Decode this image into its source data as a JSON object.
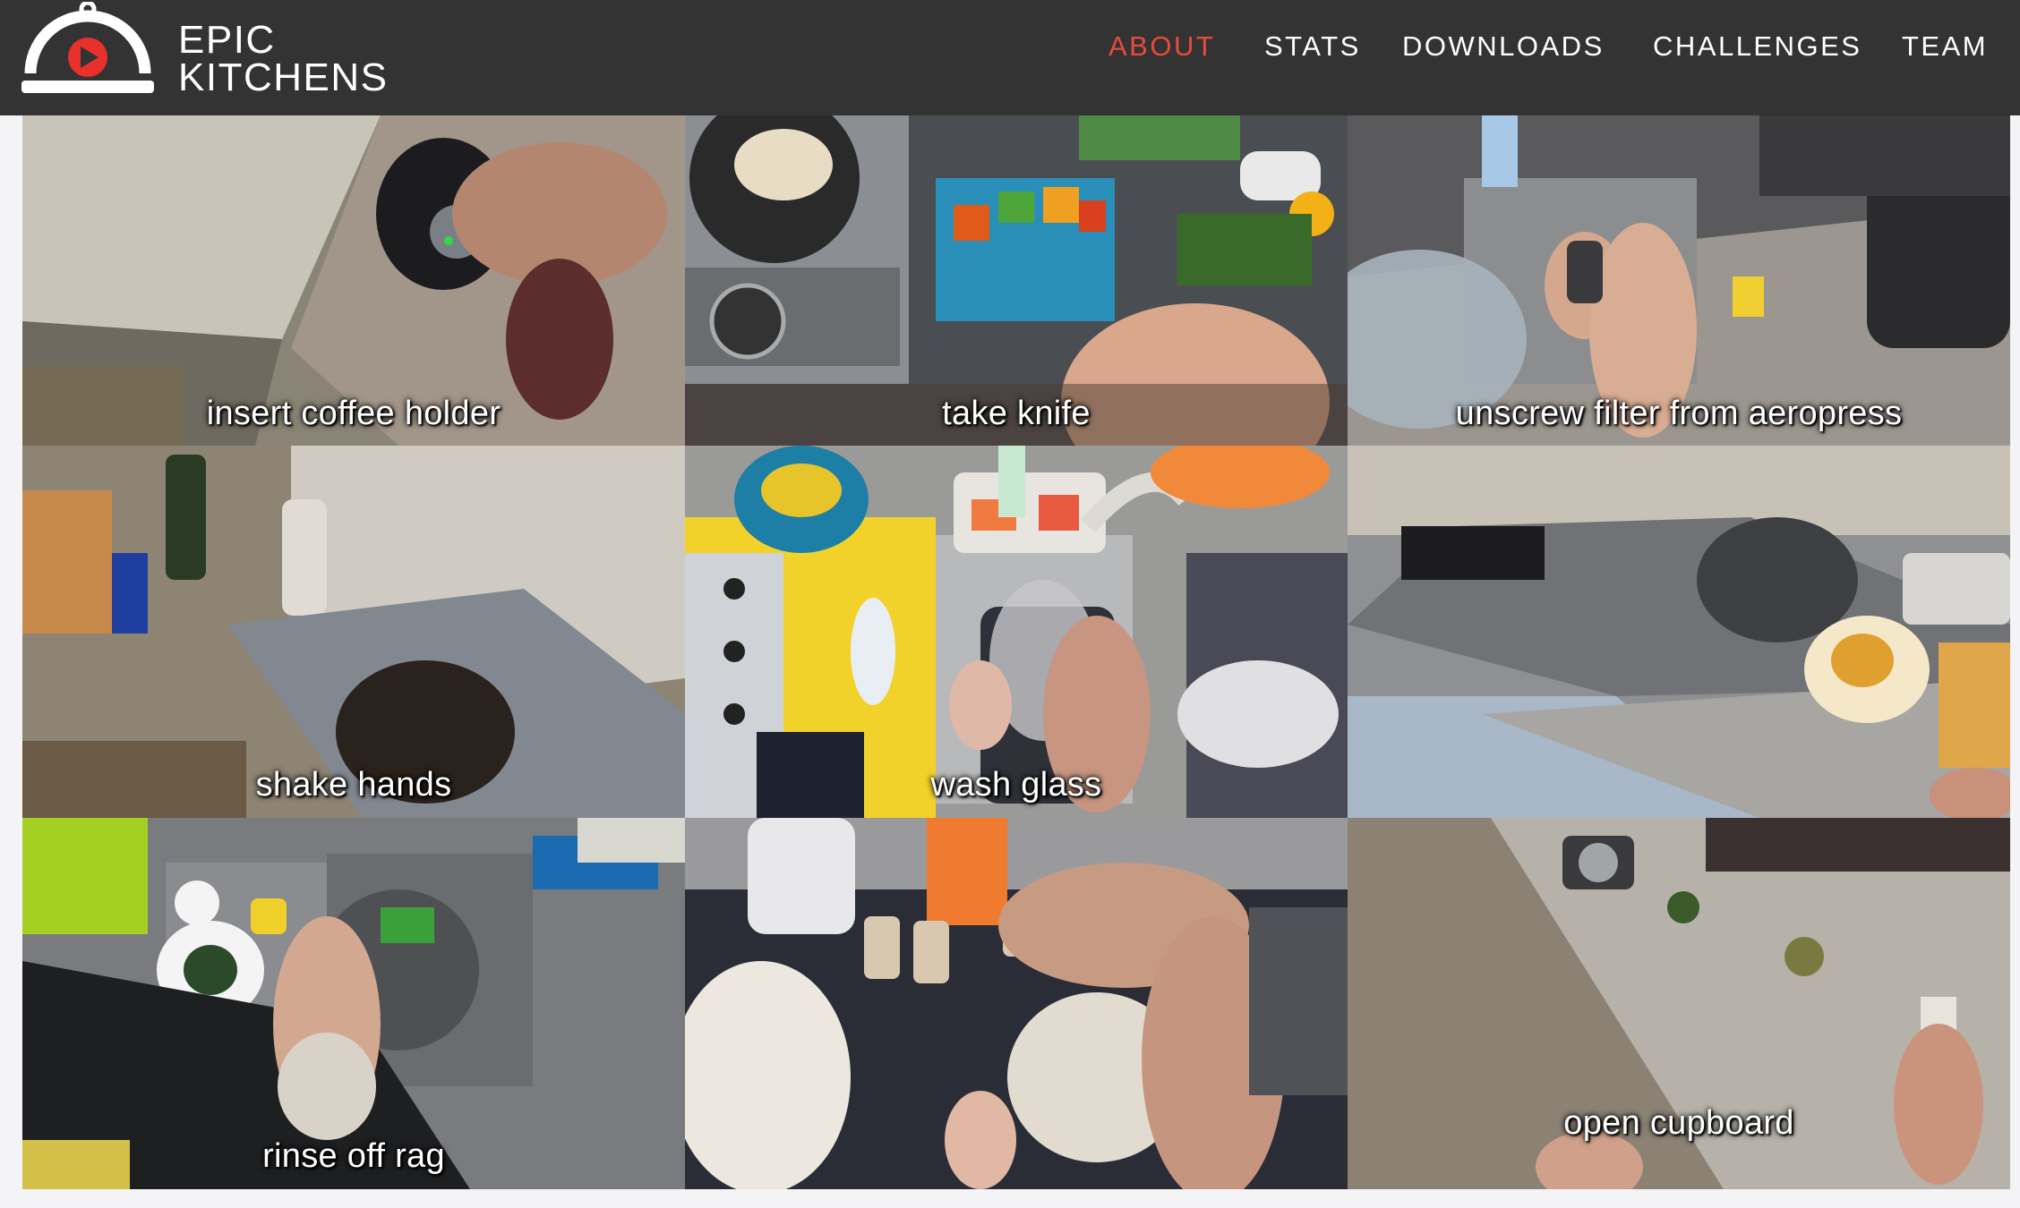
{
  "brand": {
    "line1": "EPIC",
    "line2": "KITCHENS",
    "logo_icon": "cloche-play-icon",
    "accent": "#e8302c"
  },
  "nav": {
    "items": [
      {
        "label": "ABOUT",
        "active": true
      },
      {
        "label": "STATS",
        "active": false
      },
      {
        "label": "DOWNLOADS",
        "active": false
      },
      {
        "label": "CHALLENGES",
        "active": false
      },
      {
        "label": "TEAM",
        "active": false
      }
    ],
    "active_color": "#e84a3d"
  },
  "tiles": [
    {
      "caption": "insert coffee holder"
    },
    {
      "caption": "take knife"
    },
    {
      "caption": "unscrew filter from aeropress"
    },
    {
      "caption": "shake hands"
    },
    {
      "caption": "wash glass"
    },
    {
      "caption": ""
    },
    {
      "caption": "rinse off rag"
    },
    {
      "caption": ""
    },
    {
      "caption": "open cupboard"
    }
  ]
}
